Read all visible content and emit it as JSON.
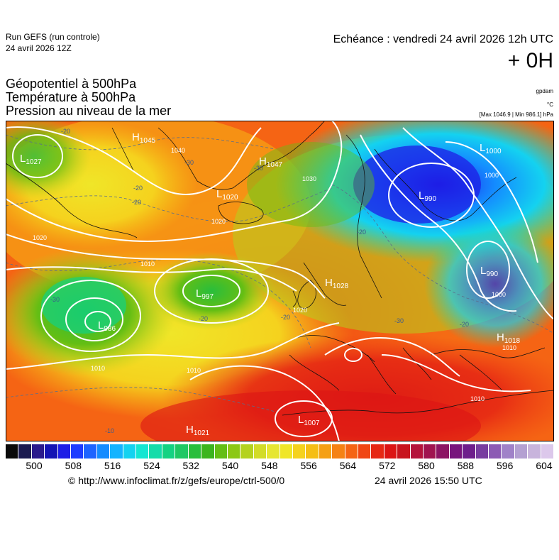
{
  "header": {
    "run_title": "Run GEFS (run controle)",
    "run_date": "24 avril 2026 12Z",
    "echeance": "Echéance : vendredi 24 avril 2026 12h UTC",
    "leadtime": "+ 0H"
  },
  "titles": {
    "line1": "Géopotentiel à 500hPa",
    "line2": "Température à 500hPa",
    "line3": "Pression au niveau de la mer"
  },
  "units": {
    "geopotential": "gpdam",
    "temperature": "°C",
    "pressure": "[Max 1046.9 | Min 986.1] hPa"
  },
  "map": {
    "pressure_centers": [
      {
        "kind": "H",
        "value": "1045"
      },
      {
        "kind": "L",
        "value": "1027"
      },
      {
        "kind": "H",
        "value": "1047"
      },
      {
        "kind": "L",
        "value": "1020"
      },
      {
        "kind": "L",
        "value": "990"
      },
      {
        "kind": "L",
        "value": "1000"
      },
      {
        "kind": "L",
        "value": "997"
      },
      {
        "kind": "L",
        "value": "986"
      },
      {
        "kind": "H",
        "value": "1028"
      },
      {
        "kind": "L",
        "value": "990"
      },
      {
        "kind": "H",
        "value": "1018"
      },
      {
        "kind": "H",
        "value": "1021"
      },
      {
        "kind": "L",
        "value": "1007"
      }
    ],
    "isobar_labels": [
      "1040",
      "1030",
      "1020",
      "1020",
      "1010",
      "1010",
      "1010",
      "1020",
      "1000",
      "1000",
      "1010",
      "1010"
    ],
    "temperature_labels": [
      "-20",
      "-30",
      "-30",
      "-20",
      "-20",
      "-30",
      "-20",
      "-20",
      "-20",
      "-20",
      "-30",
      "-10"
    ]
  },
  "colorbar": {
    "colors": [
      "#0a0a0a",
      "#1a1a50",
      "#2a1a8c",
      "#1414b4",
      "#1e1ee6",
      "#1e3cff",
      "#1e64ff",
      "#148cff",
      "#14b4ff",
      "#14d2f0",
      "#14e6d2",
      "#14dcaa",
      "#14d282",
      "#1ec864",
      "#28be3c",
      "#3cb41e",
      "#64be14",
      "#8cc814",
      "#b4d21e",
      "#d2dc28",
      "#e6e632",
      "#f0e628",
      "#f5d21e",
      "#f5be14",
      "#f5a014",
      "#f58214",
      "#f56414",
      "#f04614",
      "#e62814",
      "#dc1414",
      "#c8141e",
      "#b4143c",
      "#a01450",
      "#8c1464",
      "#78147d",
      "#6e1e8c",
      "#783ca0",
      "#8c5ab4",
      "#a082c8",
      "#b4a0d2",
      "#c8b4dc",
      "#dcc8eb"
    ],
    "ticks": [
      "500",
      "508",
      "516",
      "524",
      "532",
      "540",
      "548",
      "556",
      "564",
      "572",
      "580",
      "588",
      "596",
      "604"
    ]
  },
  "footer": {
    "url": "© http://www.infoclimat.fr/z/gefs/europe/ctrl-500/0",
    "date": "24 avril 2026 15:50 UTC"
  }
}
